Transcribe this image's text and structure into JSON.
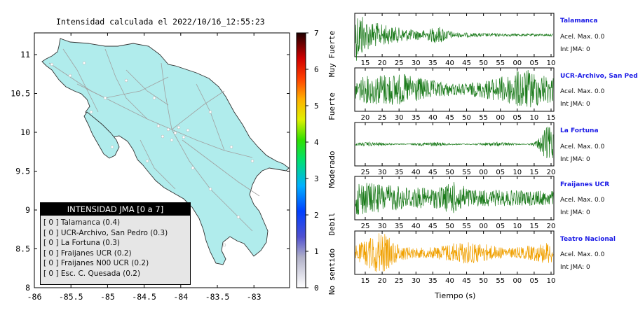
{
  "map": {
    "title": "Intensidad calculada el 2022/10/16_12:55:23",
    "x_ticks": [
      "-86",
      "-85.5",
      "-85",
      "-84.5",
      "-84",
      "-83.5",
      "-83"
    ],
    "y_ticks": [
      "11",
      "10.5",
      "10",
      "9.5",
      "9",
      "8.5",
      "8"
    ]
  },
  "colorbar": {
    "values": [
      "7",
      "6",
      "5",
      "4",
      "3",
      "2",
      "1",
      "0"
    ],
    "labels": [
      "Muy Fuerte",
      "Fuerte",
      "Moderado",
      "Debil",
      "No sentido"
    ]
  },
  "legend": {
    "title": "INTENSIDAD JMA [0 a 7]",
    "items": [
      "[ 0 ]  Talamanca (0.4)",
      "[ 0 ]  UCR-Archivo, San Pedro (0.3)",
      "[ 0 ]  La Fortuna (0.3)",
      "[ 0 ]  Fraijanes UCR (0.2)",
      "[ 0 ]  Fraijanes N00 UCR (0.2)",
      "[ 0 ]  Esc. C. Quesada (0.2)"
    ]
  },
  "stations": [
    {
      "name": "Talamanca",
      "acel": "Acel. Max. 0.0",
      "jma": "Int JMA: 0",
      "ticks": [
        "15",
        "20",
        "25",
        "30",
        "35",
        "40",
        "45",
        "50",
        "55",
        "00",
        "05",
        "10"
      ],
      "color": "#1a7a1a"
    },
    {
      "name": "UCR-Archivo, San Pedro",
      "acel": "Acel. Max. 0.0",
      "jma": "Int JMA: 0",
      "ticks": [
        "20",
        "25",
        "30",
        "35",
        "40",
        "45",
        "50",
        "55",
        "00",
        "05",
        "10",
        "15"
      ],
      "color": "#1a7a1a"
    },
    {
      "name": "La Fortuna",
      "acel": "Acel. Max. 0.0",
      "jma": "Int JMA: 0",
      "ticks": [
        "25",
        "30",
        "35",
        "40",
        "45",
        "50",
        "55",
        "00",
        "05",
        "10",
        "15",
        "20"
      ],
      "color": "#1a7a1a"
    },
    {
      "name": "Fraijanes UCR",
      "acel": "Acel. Max. 0.0",
      "jma": "Int JMA: 0",
      "ticks": [
        "25",
        "30",
        "35",
        "40",
        "45",
        "50",
        "55",
        "00",
        "05",
        "10",
        "15",
        "20"
      ],
      "color": "#1a7a1a"
    },
    {
      "name": "Teatro Nacional",
      "acel": "Acel. Max. 0.0",
      "jma": "Int JMA: 0",
      "ticks": [
        "15",
        "20",
        "25",
        "30",
        "35",
        "40",
        "45",
        "50",
        "55",
        "00",
        "05",
        "10"
      ],
      "color": "#f0a000"
    }
  ],
  "time_axis_label": "Tiempo (s)"
}
